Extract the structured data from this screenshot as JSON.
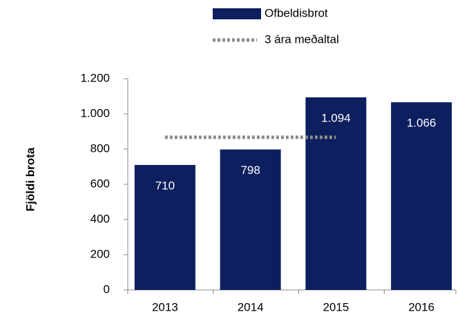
{
  "chart_data": {
    "type": "bar",
    "categories": [
      "2013",
      "2014",
      "2015",
      "2016"
    ],
    "series": [
      {
        "name": "Ofbeldisbrot",
        "color": "#0d1f5e",
        "values": [
          710,
          798,
          1094,
          1066
        ],
        "value_labels": [
          "710",
          "798",
          "1.094",
          "1.066"
        ]
      },
      {
        "name": "3 ára meðaltal",
        "type": "line",
        "color": "#8c8c8c",
        "values": [
          867,
          867,
          867,
          null
        ]
      }
    ],
    "ylabel": "Fjöldi brota",
    "ylim": [
      0,
      1200
    ],
    "yticks": [
      0,
      200,
      400,
      600,
      800,
      {
        "value": 1000,
        "label": "1.000"
      },
      {
        "value": 1200,
        "label": "1.200"
      }
    ],
    "legend": "top"
  }
}
